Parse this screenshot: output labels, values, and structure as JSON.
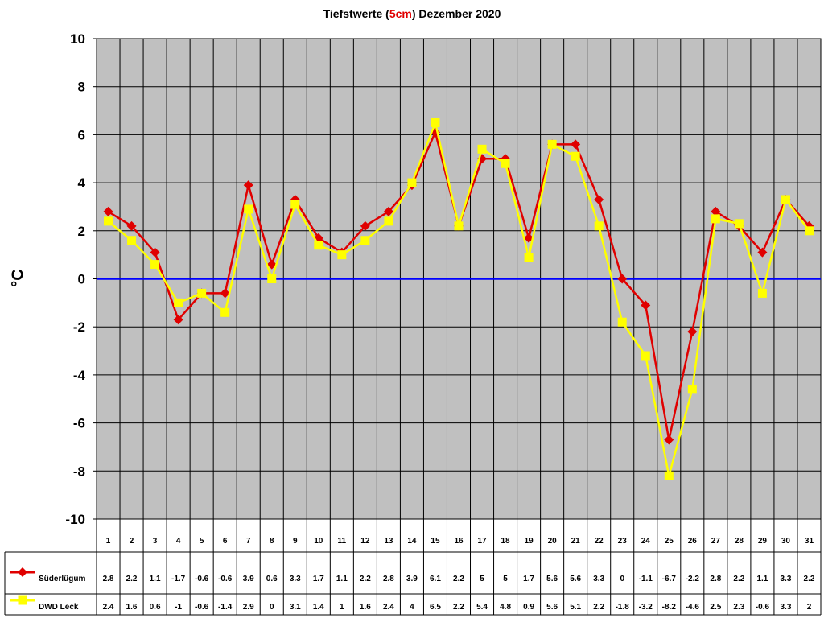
{
  "title": {
    "prefix": "Tiefstwerte (",
    "highlight": "5cm",
    "suffix": ") Dezember 2020"
  },
  "chart_data": {
    "type": "line",
    "ylabel": "°C",
    "ylim": [
      -10,
      10
    ],
    "yticks": [
      10,
      8,
      6,
      4,
      2,
      0,
      -2,
      -4,
      -6,
      -8,
      -10
    ],
    "grid": true,
    "categories": [
      1,
      2,
      3,
      4,
      5,
      6,
      7,
      8,
      9,
      10,
      11,
      12,
      13,
      14,
      15,
      16,
      17,
      18,
      19,
      20,
      21,
      22,
      23,
      24,
      25,
      26,
      27,
      28,
      29,
      30,
      31
    ],
    "series": [
      {
        "name": "Süderlügum",
        "color": "#e00000",
        "marker": "diamond",
        "values": [
          2.8,
          2.2,
          1.1,
          -1.7,
          -0.6,
          -0.6,
          3.9,
          0.6,
          3.3,
          1.7,
          1.1,
          2.2,
          2.8,
          3.9,
          6.1,
          2.2,
          5,
          5,
          1.7,
          5.6,
          5.6,
          3.3,
          0,
          -1.1,
          -6.7,
          -2.2,
          2.8,
          2.2,
          1.1,
          3.3,
          2.2
        ],
        "labels": [
          "2.8",
          "2.2",
          "1.1",
          "-1.7",
          "-0.6",
          "-0.6",
          "3.9",
          "0.6",
          "3.3",
          "1.7",
          "1.1",
          "2.2",
          "2.8",
          "3.9",
          "6.1",
          "2.2",
          "5",
          "5",
          "1.7",
          "5.6",
          "5.6",
          "3.3",
          "0",
          "-1.1",
          "-6.7",
          "-2.2",
          "2.8",
          "2.2",
          "1.1",
          "3.3",
          "2.2"
        ]
      },
      {
        "name": "DWD Leck",
        "color": "#ffff00",
        "marker": "square",
        "values": [
          2.4,
          1.6,
          0.6,
          -1,
          -0.6,
          -1.4,
          2.9,
          0,
          3.1,
          1.4,
          1,
          1.6,
          2.4,
          4,
          6.5,
          2.2,
          5.4,
          4.8,
          0.9,
          5.6,
          5.1,
          2.2,
          -1.8,
          -3.2,
          -8.2,
          -4.6,
          2.5,
          2.3,
          -0.6,
          3.3,
          2
        ],
        "labels": [
          "2.4",
          "1.6",
          "0.6",
          "-1",
          "-0.6",
          "-1.4",
          "2.9",
          "0",
          "3.1",
          "1.4",
          "1",
          "1.6",
          "2.4",
          "4",
          "6.5",
          "2.2",
          "5.4",
          "4.8",
          "0.9",
          "5.6",
          "5.1",
          "2.2",
          "-1.8",
          "-3.2",
          "-8.2",
          "-4.6",
          "2.5",
          "2.3",
          "-0.6",
          "3.3",
          "2"
        ]
      }
    ],
    "zero_line_color": "#0000ff",
    "plot_bg": "#c0c0c0"
  }
}
